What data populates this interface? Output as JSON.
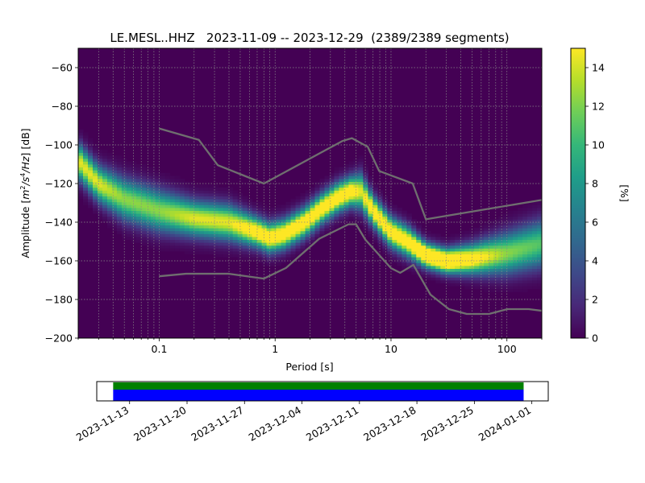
{
  "chart_data": [
    {
      "type": "heatmap",
      "title": "LE.MESL..HHZ   2023-11-09 -- 2023-12-29  (2389/2389 segments)",
      "xlabel": "Period [s]",
      "ylabel_main": "Amplitude [m²/s⁴/Hz] [dB]",
      "x_scale": "log",
      "xlim": [
        0.02,
        200
      ],
      "ylim": [
        -200,
        -50
      ],
      "x_ticks": [
        {
          "value": 0.1,
          "label": "0.1"
        },
        {
          "value": 1,
          "label": "1"
        },
        {
          "value": 10,
          "label": "10"
        },
        {
          "value": 100,
          "label": "100"
        }
      ],
      "y_ticks": [
        {
          "value": -60,
          "label": "−60"
        },
        {
          "value": -80,
          "label": "−80"
        },
        {
          "value": -100,
          "label": "−100"
        },
        {
          "value": -120,
          "label": "−120"
        },
        {
          "value": -140,
          "label": "−140"
        },
        {
          "value": -160,
          "label": "−160"
        },
        {
          "value": -180,
          "label": "−180"
        },
        {
          "value": -200,
          "label": "−200"
        }
      ],
      "grid": true,
      "colormap": "viridis",
      "colorbar": {
        "label": "[%]",
        "range": [
          0,
          15
        ],
        "ticks": [
          {
            "value": 0,
            "label": "0"
          },
          {
            "value": 2,
            "label": "2"
          },
          {
            "value": 4,
            "label": "4"
          },
          {
            "value": 6,
            "label": "6"
          },
          {
            "value": 8,
            "label": "8"
          },
          {
            "value": 10,
            "label": "10"
          },
          {
            "value": 12,
            "label": "12"
          },
          {
            "value": 14,
            "label": "14"
          }
        ]
      },
      "ppsd_mode": {
        "period": [
          0.02,
          0.03,
          0.05,
          0.1,
          0.2,
          0.4,
          0.7,
          0.9,
          1.2,
          1.8,
          2.5,
          3.5,
          4.5,
          5.5,
          7,
          10,
          14,
          20,
          30,
          50,
          100,
          200
        ],
        "amplitude_db": [
          -108,
          -120,
          -128,
          -134,
          -138,
          -140,
          -145,
          -148,
          -146,
          -140,
          -133,
          -127,
          -124,
          -124,
          -134,
          -145,
          -150,
          -157,
          -160,
          -159,
          -156,
          -151
        ]
      },
      "ppsd_spread_db": [
        6,
        6,
        7,
        7,
        6,
        6,
        5,
        5,
        5,
        5,
        5,
        5,
        5,
        6,
        5,
        5,
        5,
        4,
        4,
        5,
        7,
        8
      ],
      "nhnm": {
        "period": [
          0.1,
          0.22,
          0.32,
          0.8,
          3.8,
          4.6,
          6.3,
          7.9,
          15.4,
          20,
          354.8
        ],
        "amplitude_db": [
          -91.5,
          -97.4,
          -110.5,
          -120,
          -98,
          -96.5,
          -101,
          -113.5,
          -120,
          -138.5,
          -126
        ]
      },
      "nlnm": {
        "period": [
          0.1,
          0.17,
          0.4,
          0.8,
          1.24,
          2.4,
          4.3,
          5,
          6,
          10,
          12,
          15.6,
          21.9,
          31.6,
          45,
          70,
          101,
          154,
          328
        ],
        "amplitude_db": [
          -168,
          -166.7,
          -166.7,
          -169.2,
          -163.7,
          -148.6,
          -141.1,
          -141.1,
          -149,
          -163.8,
          -166.2,
          -162.1,
          -177.5,
          -185,
          -187.5,
          -187.5,
          -185,
          -185,
          -187.5
        ]
      }
    },
    {
      "type": "timeline",
      "x_ticks": [
        "2023-11-13",
        "2023-11-20",
        "2023-11-27",
        "2023-12-04",
        "2023-12-11",
        "2023-12-18",
        "2023-12-25",
        "2024-01-01"
      ],
      "xlim": [
        "2023-11-09",
        "2024-01-03"
      ],
      "coverage": {
        "start": "2023-11-11",
        "end": "2023-12-31"
      },
      "colors": {
        "processed": "#008000",
        "available": "#0000ff"
      }
    }
  ]
}
